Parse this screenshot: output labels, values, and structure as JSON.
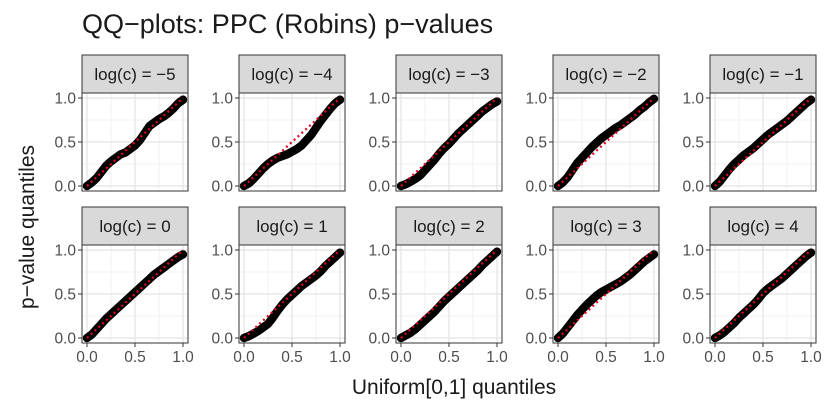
{
  "chart_data": {
    "type": "scatter",
    "title": "QQ−plots: PPC (Robins) p−values",
    "xlabel": "Uniform[0,1] quantiles",
    "ylabel": "p−value quantiles",
    "xlim": [
      0,
      1
    ],
    "ylim": [
      0,
      1
    ],
    "x_ticks": [
      "0.0",
      "0.5",
      "1.0"
    ],
    "y_ticks": [
      "0.0",
      "0.5",
      "1.0"
    ],
    "grid": true,
    "layout": {
      "rows": 2,
      "cols": 5
    },
    "reference_line": {
      "style": "dotted",
      "color": "#e8001c",
      "from": [
        0,
        0
      ],
      "to": [
        1,
        1
      ]
    },
    "point_color": "#000000",
    "strip_fill": "#d9d9d9",
    "panels": [
      {
        "label": "log(c) = −5",
        "points": [
          [
            0,
            0
          ],
          [
            0.05,
            0.04
          ],
          [
            0.1,
            0.09
          ],
          [
            0.15,
            0.16
          ],
          [
            0.2,
            0.23
          ],
          [
            0.25,
            0.28
          ],
          [
            0.3,
            0.32
          ],
          [
            0.35,
            0.36
          ],
          [
            0.4,
            0.38
          ],
          [
            0.45,
            0.42
          ],
          [
            0.5,
            0.46
          ],
          [
            0.55,
            0.52
          ],
          [
            0.6,
            0.6
          ],
          [
            0.65,
            0.68
          ],
          [
            0.7,
            0.72
          ],
          [
            0.75,
            0.76
          ],
          [
            0.8,
            0.79
          ],
          [
            0.85,
            0.83
          ],
          [
            0.9,
            0.88
          ],
          [
            0.95,
            0.94
          ],
          [
            1,
            0.98
          ]
        ]
      },
      {
        "label": "log(c) = −4",
        "points": [
          [
            0,
            0
          ],
          [
            0.05,
            0.03
          ],
          [
            0.1,
            0.08
          ],
          [
            0.15,
            0.14
          ],
          [
            0.2,
            0.2
          ],
          [
            0.25,
            0.25
          ],
          [
            0.3,
            0.29
          ],
          [
            0.35,
            0.32
          ],
          [
            0.4,
            0.34
          ],
          [
            0.45,
            0.36
          ],
          [
            0.5,
            0.39
          ],
          [
            0.55,
            0.42
          ],
          [
            0.6,
            0.46
          ],
          [
            0.65,
            0.52
          ],
          [
            0.7,
            0.58
          ],
          [
            0.75,
            0.66
          ],
          [
            0.8,
            0.74
          ],
          [
            0.85,
            0.81
          ],
          [
            0.9,
            0.88
          ],
          [
            0.95,
            0.94
          ],
          [
            1,
            0.98
          ]
        ]
      },
      {
        "label": "log(c) = −3",
        "points": [
          [
            0,
            0
          ],
          [
            0.05,
            0.02
          ],
          [
            0.1,
            0.05
          ],
          [
            0.15,
            0.08
          ],
          [
            0.2,
            0.12
          ],
          [
            0.25,
            0.18
          ],
          [
            0.3,
            0.24
          ],
          [
            0.35,
            0.3
          ],
          [
            0.4,
            0.37
          ],
          [
            0.45,
            0.43
          ],
          [
            0.5,
            0.48
          ],
          [
            0.55,
            0.54
          ],
          [
            0.6,
            0.6
          ],
          [
            0.65,
            0.65
          ],
          [
            0.7,
            0.7
          ],
          [
            0.75,
            0.75
          ],
          [
            0.8,
            0.8
          ],
          [
            0.85,
            0.85
          ],
          [
            0.9,
            0.89
          ],
          [
            0.95,
            0.93
          ],
          [
            1,
            0.96
          ]
        ]
      },
      {
        "label": "log(c) = −2",
        "points": [
          [
            0,
            0
          ],
          [
            0.05,
            0.04
          ],
          [
            0.1,
            0.1
          ],
          [
            0.15,
            0.18
          ],
          [
            0.2,
            0.26
          ],
          [
            0.25,
            0.32
          ],
          [
            0.3,
            0.38
          ],
          [
            0.35,
            0.44
          ],
          [
            0.4,
            0.49
          ],
          [
            0.45,
            0.54
          ],
          [
            0.5,
            0.58
          ],
          [
            0.55,
            0.62
          ],
          [
            0.6,
            0.66
          ],
          [
            0.65,
            0.69
          ],
          [
            0.7,
            0.73
          ],
          [
            0.75,
            0.77
          ],
          [
            0.8,
            0.81
          ],
          [
            0.85,
            0.86
          ],
          [
            0.9,
            0.9
          ],
          [
            0.95,
            0.95
          ],
          [
            1,
            0.99
          ]
        ]
      },
      {
        "label": "log(c) = −1",
        "points": [
          [
            0,
            0
          ],
          [
            0.05,
            0.05
          ],
          [
            0.1,
            0.12
          ],
          [
            0.15,
            0.19
          ],
          [
            0.2,
            0.25
          ],
          [
            0.25,
            0.3
          ],
          [
            0.3,
            0.35
          ],
          [
            0.35,
            0.39
          ],
          [
            0.4,
            0.43
          ],
          [
            0.45,
            0.48
          ],
          [
            0.5,
            0.53
          ],
          [
            0.55,
            0.58
          ],
          [
            0.6,
            0.62
          ],
          [
            0.65,
            0.66
          ],
          [
            0.7,
            0.7
          ],
          [
            0.75,
            0.74
          ],
          [
            0.8,
            0.79
          ],
          [
            0.85,
            0.84
          ],
          [
            0.9,
            0.89
          ],
          [
            0.95,
            0.94
          ],
          [
            1,
            0.98
          ]
        ]
      },
      {
        "label": "log(c) = 0",
        "points": [
          [
            0,
            0
          ],
          [
            0.05,
            0.04
          ],
          [
            0.1,
            0.1
          ],
          [
            0.15,
            0.16
          ],
          [
            0.2,
            0.22
          ],
          [
            0.25,
            0.27
          ],
          [
            0.3,
            0.32
          ],
          [
            0.35,
            0.37
          ],
          [
            0.4,
            0.42
          ],
          [
            0.45,
            0.47
          ],
          [
            0.5,
            0.52
          ],
          [
            0.55,
            0.57
          ],
          [
            0.6,
            0.62
          ],
          [
            0.65,
            0.67
          ],
          [
            0.7,
            0.72
          ],
          [
            0.75,
            0.76
          ],
          [
            0.8,
            0.8
          ],
          [
            0.85,
            0.84
          ],
          [
            0.9,
            0.88
          ],
          [
            0.95,
            0.92
          ],
          [
            1,
            0.95
          ]
        ]
      },
      {
        "label": "log(c) = 1",
        "points": [
          [
            0,
            0
          ],
          [
            0.05,
            0.02
          ],
          [
            0.1,
            0.05
          ],
          [
            0.15,
            0.08
          ],
          [
            0.2,
            0.12
          ],
          [
            0.25,
            0.16
          ],
          [
            0.3,
            0.23
          ],
          [
            0.35,
            0.31
          ],
          [
            0.4,
            0.38
          ],
          [
            0.45,
            0.44
          ],
          [
            0.5,
            0.49
          ],
          [
            0.55,
            0.54
          ],
          [
            0.6,
            0.59
          ],
          [
            0.65,
            0.63
          ],
          [
            0.7,
            0.67
          ],
          [
            0.75,
            0.71
          ],
          [
            0.8,
            0.76
          ],
          [
            0.85,
            0.82
          ],
          [
            0.9,
            0.87
          ],
          [
            0.95,
            0.92
          ],
          [
            1,
            0.97
          ]
        ]
      },
      {
        "label": "log(c) = 2",
        "points": [
          [
            0,
            0
          ],
          [
            0.05,
            0.03
          ],
          [
            0.1,
            0.06
          ],
          [
            0.15,
            0.1
          ],
          [
            0.2,
            0.15
          ],
          [
            0.25,
            0.2
          ],
          [
            0.3,
            0.25
          ],
          [
            0.35,
            0.3
          ],
          [
            0.4,
            0.36
          ],
          [
            0.45,
            0.42
          ],
          [
            0.5,
            0.47
          ],
          [
            0.55,
            0.52
          ],
          [
            0.6,
            0.57
          ],
          [
            0.65,
            0.62
          ],
          [
            0.7,
            0.67
          ],
          [
            0.75,
            0.72
          ],
          [
            0.8,
            0.77
          ],
          [
            0.85,
            0.83
          ],
          [
            0.9,
            0.88
          ],
          [
            0.95,
            0.93
          ],
          [
            1,
            0.98
          ]
        ]
      },
      {
        "label": "log(c) = 3",
        "points": [
          [
            0,
            0
          ],
          [
            0.05,
            0.05
          ],
          [
            0.1,
            0.12
          ],
          [
            0.15,
            0.19
          ],
          [
            0.2,
            0.26
          ],
          [
            0.25,
            0.32
          ],
          [
            0.3,
            0.38
          ],
          [
            0.35,
            0.43
          ],
          [
            0.4,
            0.48
          ],
          [
            0.45,
            0.52
          ],
          [
            0.5,
            0.55
          ],
          [
            0.55,
            0.58
          ],
          [
            0.6,
            0.61
          ],
          [
            0.65,
            0.64
          ],
          [
            0.7,
            0.68
          ],
          [
            0.75,
            0.72
          ],
          [
            0.8,
            0.77
          ],
          [
            0.85,
            0.82
          ],
          [
            0.9,
            0.87
          ],
          [
            0.95,
            0.91
          ],
          [
            1,
            0.95
          ]
        ]
      },
      {
        "label": "log(c) = 4",
        "points": [
          [
            0,
            0
          ],
          [
            0.05,
            0.03
          ],
          [
            0.1,
            0.07
          ],
          [
            0.15,
            0.12
          ],
          [
            0.2,
            0.17
          ],
          [
            0.25,
            0.23
          ],
          [
            0.3,
            0.28
          ],
          [
            0.35,
            0.33
          ],
          [
            0.4,
            0.38
          ],
          [
            0.45,
            0.44
          ],
          [
            0.5,
            0.51
          ],
          [
            0.55,
            0.56
          ],
          [
            0.6,
            0.6
          ],
          [
            0.65,
            0.64
          ],
          [
            0.7,
            0.68
          ],
          [
            0.75,
            0.73
          ],
          [
            0.8,
            0.78
          ],
          [
            0.85,
            0.83
          ],
          [
            0.9,
            0.88
          ],
          [
            0.95,
            0.93
          ],
          [
            1,
            0.97
          ]
        ]
      }
    ]
  }
}
